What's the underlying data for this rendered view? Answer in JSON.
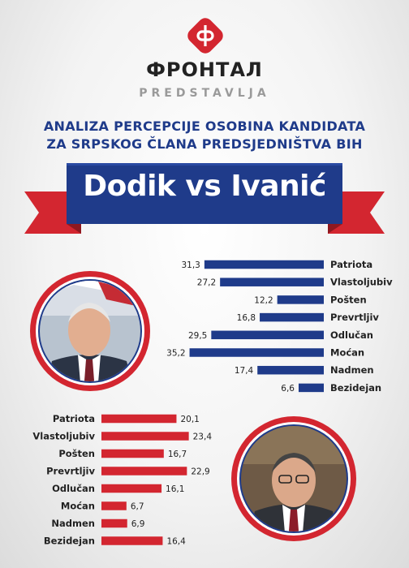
{
  "header": {
    "brand": "ФРОНТАЛ",
    "presents": "PREDSTAVLJA",
    "subtitle_line1": "ANALIZA PERCEPCIJE OSOBINA KANDIDATA",
    "subtitle_line2": "ZA SRPSKOG ČLANA PREDSJEDNIŠTVA BIH",
    "title": "Dodik vs Ivanić"
  },
  "colors": {
    "blue": "#1f3b8a",
    "red": "#d32630",
    "dark": "#222222"
  },
  "chart_data": [
    {
      "type": "bar",
      "orientation": "horizontal",
      "categories": [
        "Patriota",
        "Vlastoljubiv",
        "Pošten",
        "Prevrtljiv",
        "Odlučan",
        "Moćan",
        "Nadmen",
        "Bezidejan"
      ],
      "values": [
        31.3,
        27.2,
        12.2,
        16.8,
        29.5,
        35.2,
        17.4,
        6.6
      ],
      "value_labels": [
        "31,3",
        "27,2",
        "12,2",
        "16,8",
        "29,5",
        "35,2",
        "17,4",
        "6,6"
      ],
      "color": "#1f3b8a",
      "bar_direction": "right-to-left",
      "category_labels_position": "right"
    },
    {
      "type": "bar",
      "orientation": "horizontal",
      "categories": [
        "Patriota",
        "Vlastoljubiv",
        "Pošten",
        "Prevrtljiv",
        "Odlučan",
        "Moćan",
        "Nadmen",
        "Bezidejan"
      ],
      "values": [
        20.1,
        23.4,
        16.7,
        22.9,
        16.1,
        6.7,
        6.9,
        16.4
      ],
      "value_labels": [
        "20,1",
        "23,4",
        "16,7",
        "22,9",
        "16,1",
        "6,7",
        "6,9",
        "16,4"
      ],
      "color": "#d32630",
      "bar_direction": "left-to-right",
      "category_labels_position": "left"
    }
  ]
}
